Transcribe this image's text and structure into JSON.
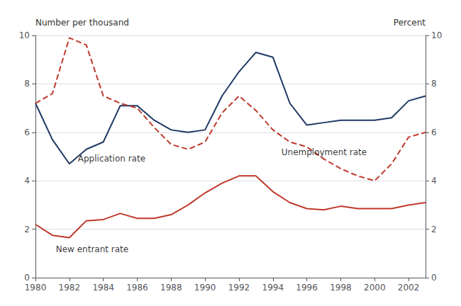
{
  "chart_data": {
    "type": "line",
    "x": [
      1980,
      1981,
      1982,
      1983,
      1984,
      1985,
      1986,
      1987,
      1988,
      1989,
      1990,
      1991,
      1992,
      1993,
      1994,
      1995,
      1996,
      1997,
      1998,
      1999,
      2000,
      2001,
      2002,
      2003
    ],
    "series": [
      {
        "name": "Application rate",
        "color": "#1f3864",
        "line_style": "solid",
        "values": [
          7.2,
          5.7,
          4.7,
          5.3,
          5.6,
          7.1,
          7.1,
          6.5,
          6.1,
          6.0,
          6.1,
          7.5,
          8.5,
          9.3,
          9.1,
          7.2,
          6.3,
          6.4,
          6.5,
          6.5,
          6.5,
          6.6,
          7.3,
          7.5
        ]
      },
      {
        "name": "New entrant rate",
        "color": "#c0392b",
        "line_style": "solid",
        "values": [
          2.2,
          1.75,
          1.65,
          2.35,
          2.4,
          2.65,
          2.45,
          2.45,
          2.6,
          3.0,
          3.5,
          3.9,
          4.2,
          4.2,
          3.55,
          3.1,
          2.85,
          2.8,
          2.95,
          2.85,
          2.85,
          2.85,
          3.0,
          3.1
        ]
      },
      {
        "name": "Unemployment rate",
        "color": "#c0392b",
        "line_style": "dashed",
        "axis": "y2",
        "values": [
          7.2,
          7.6,
          9.9,
          9.6,
          7.5,
          7.2,
          7.0,
          6.2,
          5.5,
          5.3,
          5.6,
          6.8,
          7.5,
          6.9,
          6.1,
          5.6,
          5.4,
          4.9,
          4.5,
          4.2,
          4.0,
          4.7,
          5.8,
          6.0
        ]
      }
    ],
    "ylabel": "Number per thousand",
    "y2label": "Percent",
    "xlim": [
      1980,
      2003
    ],
    "xticks": [
      1980,
      1982,
      1984,
      1986,
      1988,
      1990,
      1992,
      1994,
      1996,
      1998,
      2000,
      2002
    ],
    "ylim": [
      0,
      10
    ],
    "yticks": [
      0,
      2,
      4,
      6,
      8,
      10
    ],
    "y2lim": [
      0,
      10
    ],
    "y2ticks": [
      0,
      2,
      4,
      6,
      8,
      10
    ],
    "grid": true,
    "annotations": [
      {
        "text": "Application rate",
        "x": 1982.5,
        "y": 4.75
      },
      {
        "text": "New entrant rate",
        "x": 1981.2,
        "y": 1.35
      },
      {
        "text": "Unemployment rate",
        "x": 1994.5,
        "y": 5.35
      }
    ]
  }
}
